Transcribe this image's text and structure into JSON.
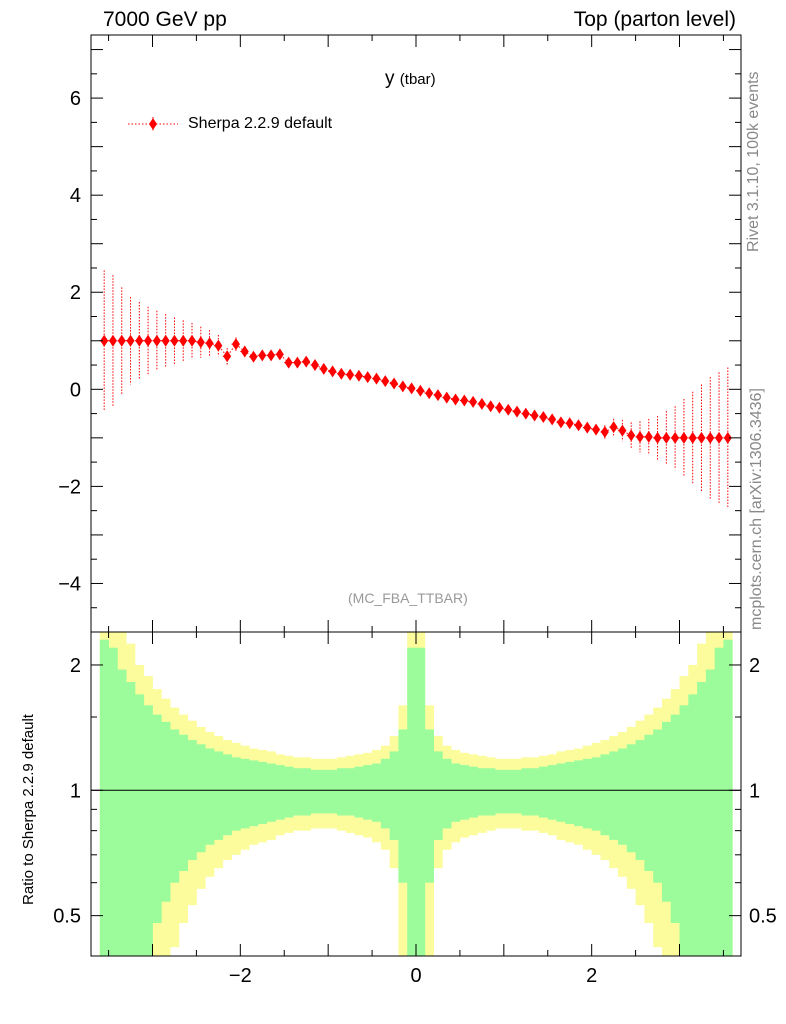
{
  "header": {
    "left": "7000 GeV pp",
    "right": "Top (parton level)"
  },
  "side_labels": {
    "rivet": "Rivet 3.1.10,  100k events",
    "mcplots": "mcplots.cern.ch [arXiv:1306.3436]"
  },
  "chart_data": [
    {
      "type": "scatter",
      "panel": "main",
      "title_main": "y",
      "title_sub": "(tbar)",
      "analysis_label": "(MC_FBA_TTBAR)",
      "legend_location": "top-left",
      "xlim": [
        -3.7,
        3.7
      ],
      "ylim": [
        -5,
        7.3
      ],
      "yticks": [
        -4,
        -2,
        0,
        2,
        4,
        6
      ],
      "ytick_labels": [
        "−4",
        "−2",
        "0",
        "2",
        "4",
        "6"
      ],
      "series": [
        {
          "name": "Sherpa 2.2.9 default",
          "color": "#ff0000",
          "marker": "diamond",
          "x": [
            -3.55,
            -3.45,
            -3.35,
            -3.25,
            -3.15,
            -3.05,
            -2.95,
            -2.85,
            -2.75,
            -2.65,
            -2.55,
            -2.45,
            -2.35,
            -2.25,
            -2.15,
            -2.05,
            -1.95,
            -1.85,
            -1.75,
            -1.65,
            -1.55,
            -1.45,
            -1.35,
            -1.25,
            -1.15,
            -1.05,
            -0.95,
            -0.85,
            -0.75,
            -0.65,
            -0.55,
            -0.45,
            -0.35,
            -0.25,
            -0.15,
            -0.05,
            0.05,
            0.15,
            0.25,
            0.35,
            0.45,
            0.55,
            0.65,
            0.75,
            0.85,
            0.95,
            1.05,
            1.15,
            1.25,
            1.35,
            1.45,
            1.55,
            1.65,
            1.75,
            1.85,
            1.95,
            2.05,
            2.15,
            2.25,
            2.35,
            2.45,
            2.55,
            2.65,
            2.75,
            2.85,
            2.95,
            3.05,
            3.15,
            3.25,
            3.35,
            3.45,
            3.55
          ],
          "y": [
            1.0,
            1.0,
            1.0,
            1.0,
            1.0,
            1.0,
            1.0,
            1.0,
            1.0,
            1.0,
            1.0,
            0.97,
            0.95,
            0.9,
            0.68,
            0.93,
            0.78,
            0.67,
            0.7,
            0.7,
            0.72,
            0.55,
            0.55,
            0.57,
            0.5,
            0.42,
            0.37,
            0.32,
            0.3,
            0.28,
            0.25,
            0.22,
            0.17,
            0.12,
            0.06,
            0.02,
            -0.03,
            -0.08,
            -0.12,
            -0.17,
            -0.21,
            -0.23,
            -0.26,
            -0.3,
            -0.35,
            -0.38,
            -0.42,
            -0.46,
            -0.5,
            -0.54,
            -0.57,
            -0.62,
            -0.68,
            -0.7,
            -0.74,
            -0.79,
            -0.83,
            -0.88,
            -0.78,
            -0.85,
            -0.95,
            -0.98,
            -0.98,
            -1.0,
            -1.0,
            -1.0,
            -1.0,
            -1.0,
            -1.0,
            -1.0,
            -1.0,
            -1.0
          ],
          "yerr": [
            1.45,
            1.35,
            1.1,
            0.9,
            0.8,
            0.7,
            0.62,
            0.55,
            0.48,
            0.42,
            0.37,
            0.32,
            0.27,
            0.22,
            0.17,
            0.14,
            0.11,
            0.09,
            0.08,
            0.07,
            0.06,
            0.05,
            0.05,
            0.04,
            0.04,
            0.04,
            0.03,
            0.03,
            0.03,
            0.03,
            0.03,
            0.03,
            0.03,
            0.03,
            0.03,
            0.03,
            0.03,
            0.03,
            0.03,
            0.03,
            0.03,
            0.03,
            0.03,
            0.03,
            0.03,
            0.03,
            0.03,
            0.04,
            0.04,
            0.04,
            0.05,
            0.05,
            0.06,
            0.07,
            0.08,
            0.09,
            0.11,
            0.14,
            0.17,
            0.22,
            0.27,
            0.32,
            0.37,
            0.45,
            0.55,
            0.65,
            0.8,
            0.95,
            1.1,
            1.25,
            1.35,
            1.45
          ]
        }
      ]
    },
    {
      "type": "area",
      "panel": "ratio",
      "ylabel": "Ratio to Sherpa 2.2.9 default",
      "xlim": [
        -3.7,
        3.7
      ],
      "ylim": [
        0.4,
        2.4
      ],
      "log_y": true,
      "yticks": [
        0.5,
        1,
        2
      ],
      "ytick_labels": [
        "0.5",
        "1",
        "2"
      ],
      "xticks": [
        -2,
        0,
        2
      ],
      "xtick_labels": [
        "−2",
        "0",
        "2"
      ],
      "reference_line": 1,
      "band_colors": {
        "inner": "#9cfc9c",
        "outer": "#fcfc9c"
      },
      "bins_x": [
        -3.55,
        -3.45,
        -3.35,
        -3.25,
        -3.15,
        -3.05,
        -2.95,
        -2.85,
        -2.75,
        -2.65,
        -2.55,
        -2.45,
        -2.35,
        -2.25,
        -2.15,
        -2.05,
        -1.95,
        -1.85,
        -1.75,
        -1.65,
        -1.55,
        -1.45,
        -1.35,
        -1.25,
        -1.15,
        -1.05,
        -0.95,
        -0.85,
        -0.75,
        -0.65,
        -0.55,
        -0.45,
        -0.35,
        -0.25,
        -0.15,
        -0.05,
        0.05,
        0.15,
        0.25,
        0.35,
        0.45,
        0.55,
        0.65,
        0.75,
        0.85,
        0.95,
        1.05,
        1.15,
        1.25,
        1.35,
        1.45,
        1.55,
        1.65,
        1.75,
        1.85,
        1.95,
        2.05,
        2.15,
        2.25,
        2.35,
        2.45,
        2.55,
        2.65,
        2.75,
        2.85,
        2.95,
        3.05,
        3.15,
        3.25,
        3.35,
        3.45,
        3.55
      ],
      "bin_width": 0.1,
      "inner_rel_err": [
        1.3,
        1.2,
        0.95,
        0.82,
        0.7,
        0.6,
        0.52,
        0.46,
        0.4,
        0.36,
        0.32,
        0.29,
        0.26,
        0.24,
        0.22,
        0.2,
        0.19,
        0.18,
        0.17,
        0.16,
        0.15,
        0.14,
        0.13,
        0.13,
        0.12,
        0.12,
        0.12,
        0.13,
        0.13,
        0.14,
        0.15,
        0.16,
        0.19,
        0.24,
        0.4,
        1.2,
        1.2,
        0.4,
        0.24,
        0.19,
        0.16,
        0.15,
        0.14,
        0.13,
        0.13,
        0.12,
        0.12,
        0.12,
        0.13,
        0.13,
        0.14,
        0.15,
        0.16,
        0.17,
        0.18,
        0.19,
        0.2,
        0.22,
        0.24,
        0.26,
        0.29,
        0.32,
        0.36,
        0.4,
        0.46,
        0.52,
        0.6,
        0.7,
        0.82,
        0.95,
        1.2,
        1.3
      ],
      "outer_rel_err": [
        2.0,
        1.8,
        1.5,
        1.25,
        1.0,
        0.88,
        0.75,
        0.66,
        0.58,
        0.52,
        0.47,
        0.42,
        0.38,
        0.35,
        0.32,
        0.3,
        0.28,
        0.26,
        0.25,
        0.24,
        0.22,
        0.21,
        0.2,
        0.2,
        0.19,
        0.19,
        0.19,
        0.2,
        0.21,
        0.22,
        0.23,
        0.25,
        0.28,
        0.35,
        0.6,
        2.0,
        2.0,
        0.6,
        0.35,
        0.28,
        0.25,
        0.23,
        0.22,
        0.21,
        0.2,
        0.19,
        0.19,
        0.19,
        0.2,
        0.2,
        0.21,
        0.22,
        0.24,
        0.25,
        0.26,
        0.28,
        0.3,
        0.32,
        0.35,
        0.38,
        0.42,
        0.47,
        0.52,
        0.58,
        0.66,
        0.75,
        0.88,
        1.0,
        1.25,
        1.5,
        1.8,
        2.0
      ]
    }
  ]
}
